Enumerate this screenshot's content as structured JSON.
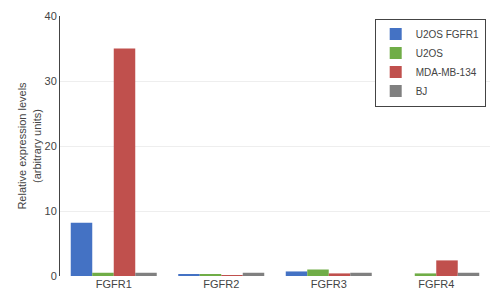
{
  "chart_data": {
    "type": "bar",
    "ylabel": "Relative expression levels\n(arbitrary units)",
    "categories": [
      "FGFR1",
      "FGFR2",
      "FGFR3",
      "FGFR4"
    ],
    "series": [
      {
        "name": "U2OS FGFR1",
        "color": "#4472C4",
        "values": [
          8.2,
          0.2,
          0.7,
          0.0
        ]
      },
      {
        "name": "U2OS",
        "color": "#70AD47",
        "values": [
          0.5,
          0.3,
          1.0,
          0.4
        ]
      },
      {
        "name": "MDA-MB-134",
        "color": "#C0504D",
        "values": [
          35.0,
          0.1,
          0.4,
          2.4
        ]
      },
      {
        "name": "BJ",
        "color": "#808080",
        "values": [
          0.5,
          0.5,
          0.5,
          0.5
        ]
      }
    ],
    "ylim": [
      0,
      40
    ],
    "yticks": [
      0,
      10,
      20,
      30,
      40
    ],
    "grid": true,
    "legend": "upper right"
  }
}
